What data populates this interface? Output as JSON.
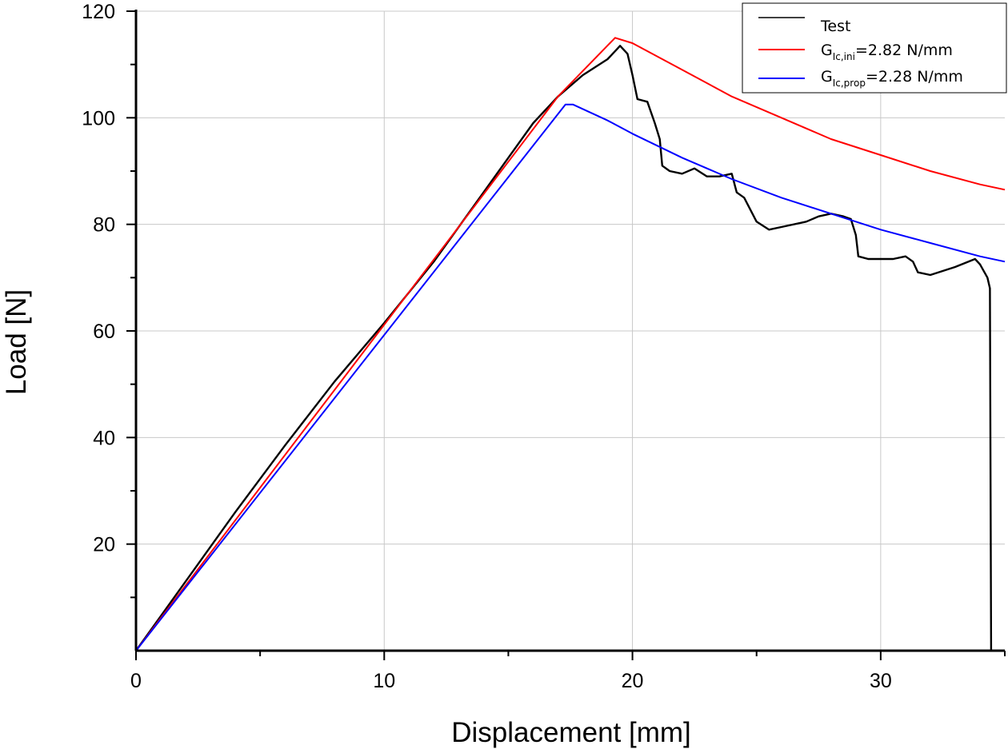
{
  "chart_data": {
    "type": "line",
    "xlabel": "Displacement [mm]",
    "ylabel": "Load [N]",
    "xlim": [
      0,
      35
    ],
    "ylim": [
      0,
      120
    ],
    "x_ticks": [
      0,
      10,
      20,
      30
    ],
    "y_ticks": [
      20,
      40,
      60,
      80,
      100,
      120
    ],
    "grid": true,
    "legend_position": "top-right",
    "series": [
      {
        "name": "Test",
        "color": "#000000",
        "points": [
          [
            0,
            0
          ],
          [
            2,
            13
          ],
          [
            4,
            26
          ],
          [
            6,
            38.5
          ],
          [
            8,
            50.5
          ],
          [
            10,
            61.5
          ],
          [
            12,
            73
          ],
          [
            14,
            86
          ],
          [
            16,
            99
          ],
          [
            17,
            104
          ],
          [
            18,
            108
          ],
          [
            19,
            111
          ],
          [
            19.5,
            113.5
          ],
          [
            19.8,
            112
          ],
          [
            20,
            108
          ],
          [
            20.2,
            103.5
          ],
          [
            20.6,
            103
          ],
          [
            20.9,
            99
          ],
          [
            21.1,
            96
          ],
          [
            21.2,
            91
          ],
          [
            21.5,
            90
          ],
          [
            22,
            89.5
          ],
          [
            22.5,
            90.5
          ],
          [
            23,
            89
          ],
          [
            23.5,
            89
          ],
          [
            24,
            89.5
          ],
          [
            24.2,
            86
          ],
          [
            24.5,
            85
          ],
          [
            25,
            80.5
          ],
          [
            25.5,
            79
          ],
          [
            26,
            79.5
          ],
          [
            27,
            80.5
          ],
          [
            27.5,
            81.5
          ],
          [
            28,
            82
          ],
          [
            28.5,
            81.5
          ],
          [
            28.8,
            81
          ],
          [
            29,
            78
          ],
          [
            29.1,
            74
          ],
          [
            29.5,
            73.5
          ],
          [
            30,
            73.5
          ],
          [
            30.5,
            73.5
          ],
          [
            31,
            74
          ],
          [
            31.3,
            73
          ],
          [
            31.5,
            71
          ],
          [
            32,
            70.5
          ],
          [
            33,
            72
          ],
          [
            33.8,
            73.5
          ],
          [
            34,
            72.5
          ],
          [
            34.3,
            70
          ],
          [
            34.4,
            68
          ],
          [
            34.45,
            0
          ]
        ]
      },
      {
        "name": "G_Ic,ini=2.82 N/mm",
        "label_main": "G",
        "label_sub": "Ic,ini",
        "label_rest": "=2.82 N/mm",
        "color": "#ff0000",
        "points": [
          [
            0,
            0
          ],
          [
            17,
            104
          ],
          [
            19.3,
            115
          ],
          [
            20,
            114
          ],
          [
            22,
            109
          ],
          [
            24,
            104
          ],
          [
            26,
            100
          ],
          [
            28,
            96
          ],
          [
            30,
            93
          ],
          [
            32,
            90
          ],
          [
            34,
            87.5
          ],
          [
            35,
            86.5
          ]
        ]
      },
      {
        "name": "G_Ic,prop=2.28 N/mm",
        "label_main": "G",
        "label_sub": "Ic,prop",
        "label_rest": "=2.28 N/mm",
        "color": "#0000ff",
        "points": [
          [
            0,
            0
          ],
          [
            17.3,
            102.5
          ],
          [
            17.6,
            102.5
          ],
          [
            19,
            99.5
          ],
          [
            20,
            97
          ],
          [
            22,
            92.5
          ],
          [
            24,
            88.5
          ],
          [
            26,
            85
          ],
          [
            28,
            82
          ],
          [
            30,
            79
          ],
          [
            32,
            76.5
          ],
          [
            34,
            74
          ],
          [
            35,
            73
          ]
        ]
      }
    ]
  }
}
